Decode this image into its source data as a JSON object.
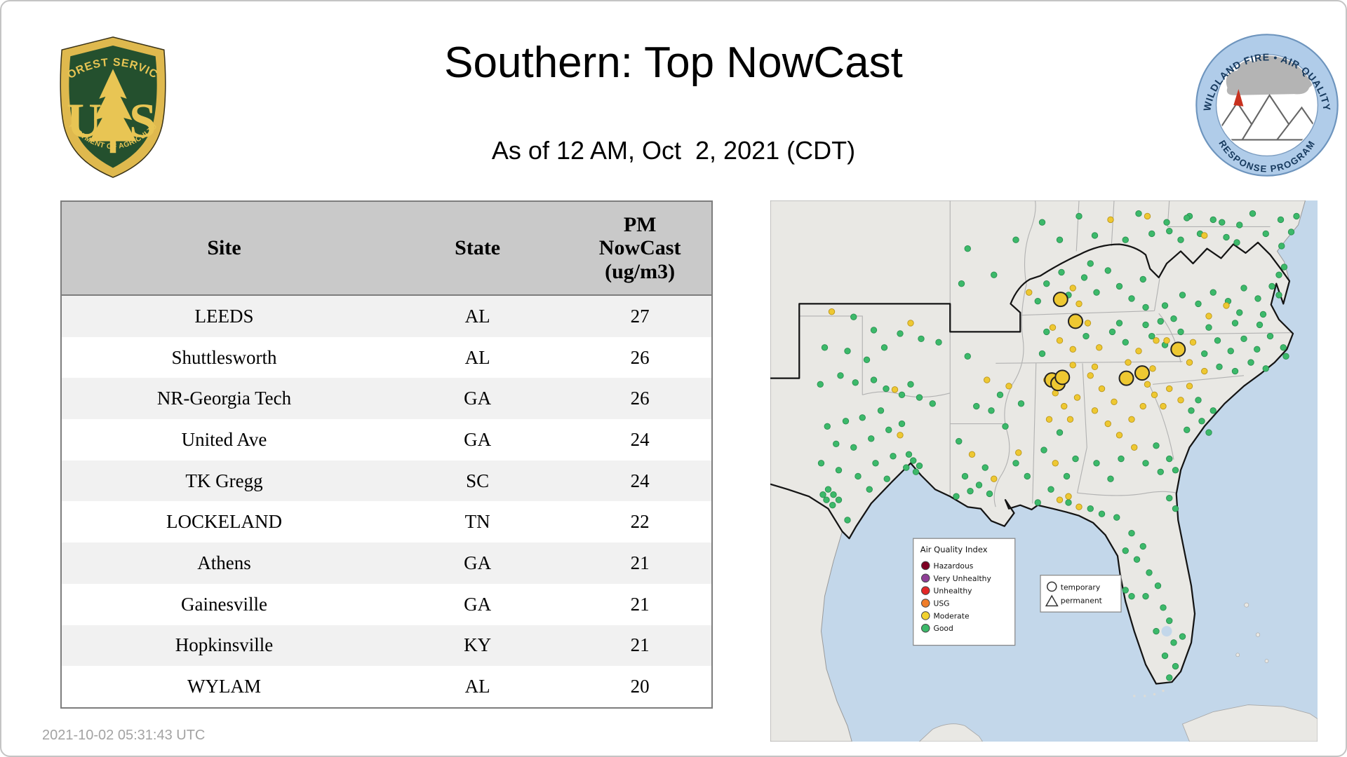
{
  "page": {
    "title": "Southern: Top NowCast",
    "subtitle": "As of 12 AM, Oct  2, 2021 (CDT)",
    "timestamp": "2021-10-02 05:31:43 UTC"
  },
  "logos": {
    "forest_service": {
      "arc_top": "FOREST SERVICE",
      "us_left": "U",
      "us_right": "S",
      "arc_bottom": "DEPARTMENT OF AGRICULTURE"
    },
    "wfaqrp": {
      "arc_top": "WILDLAND FIRE  •  AIR QUALITY",
      "arc_bottom": "RESPONSE PROGRAM"
    }
  },
  "table": {
    "columns": [
      "Site",
      "State",
      "PM\nNowCast\n(ug/m3)"
    ],
    "rows": [
      [
        "LEEDS",
        "AL",
        "27"
      ],
      [
        "Shuttlesworth",
        "AL",
        "26"
      ],
      [
        "NR-Georgia Tech",
        "GA",
        "26"
      ],
      [
        "United Ave",
        "GA",
        "24"
      ],
      [
        "TK Gregg",
        "SC",
        "24"
      ],
      [
        "LOCKELAND",
        "TN",
        "22"
      ],
      [
        "Athens",
        "GA",
        "21"
      ],
      [
        "Gainesville",
        "GA",
        "21"
      ],
      [
        "Hopkinsville",
        "KY",
        "21"
      ],
      [
        "WYLAM",
        "AL",
        "20"
      ]
    ]
  },
  "chart_data": {
    "type": "table",
    "title": "Southern: Top NowCast",
    "as_of": "As of 12 AM, Oct  2, 2021 (CDT)",
    "columns": [
      "Site",
      "State",
      "PM NowCast (ug/m3)"
    ],
    "rows": [
      [
        "LEEDS",
        "AL",
        27
      ],
      [
        "Shuttlesworth",
        "AL",
        26
      ],
      [
        "NR-Georgia Tech",
        "GA",
        26
      ],
      [
        "United Ave",
        "GA",
        24
      ],
      [
        "TK Gregg",
        "SC",
        24
      ],
      [
        "LOCKELAND",
        "TN",
        22
      ],
      [
        "Athens",
        "GA",
        21
      ],
      [
        "Gainesville",
        "GA",
        21
      ],
      [
        "Hopkinsville",
        "KY",
        21
      ],
      [
        "WYLAM",
        "AL",
        20
      ]
    ]
  },
  "map": {
    "colors": {
      "water": "#c3d7ea",
      "land": "#e9e8e4",
      "good": "#3cb96a",
      "good_stroke": "#2a8f50",
      "moderate": "#eec832",
      "moderate_stroke": "#b8941a",
      "temp_stroke": "#222222"
    },
    "legend_aqi": {
      "title": "Air Quality Index",
      "items": [
        {
          "label": "Hazardous",
          "color": "#7e0023"
        },
        {
          "label": "Very Unhealthy",
          "color": "#8f3f97"
        },
        {
          "label": "Unhealthy",
          "color": "#e32726"
        },
        {
          "label": "USG",
          "color": "#f07d29"
        },
        {
          "label": "Moderate",
          "color": "#f2d22e"
        },
        {
          "label": "Good",
          "color": "#3cb96a"
        }
      ]
    },
    "legend_type": {
      "items": [
        {
          "label": "temporary",
          "shape": "circle"
        },
        {
          "label": "permanent",
          "shape": "triangle"
        }
      ]
    },
    "points": [
      [
        95,
        133,
        "g"
      ],
      [
        62,
        168,
        "g"
      ],
      [
        88,
        172,
        "g"
      ],
      [
        110,
        182,
        "g"
      ],
      [
        80,
        200,
        "g"
      ],
      [
        57,
        210,
        "g"
      ],
      [
        97,
        208,
        "g"
      ],
      [
        118,
        205,
        "g"
      ],
      [
        132,
        215,
        "g"
      ],
      [
        150,
        222,
        "g"
      ],
      [
        160,
        210,
        "g"
      ],
      [
        170,
        225,
        "g"
      ],
      [
        185,
        232,
        "g"
      ],
      [
        126,
        240,
        "g"
      ],
      [
        105,
        248,
        "g"
      ],
      [
        86,
        252,
        "g"
      ],
      [
        65,
        258,
        "g"
      ],
      [
        75,
        278,
        "g"
      ],
      [
        95,
        282,
        "g"
      ],
      [
        115,
        272,
        "g"
      ],
      [
        135,
        262,
        "g"
      ],
      [
        150,
        255,
        "g"
      ],
      [
        58,
        300,
        "g"
      ],
      [
        78,
        308,
        "g"
      ],
      [
        100,
        315,
        "g"
      ],
      [
        120,
        300,
        "g"
      ],
      [
        140,
        292,
        "g"
      ],
      [
        155,
        305,
        "g"
      ],
      [
        133,
        318,
        "g"
      ],
      [
        113,
        330,
        "g"
      ],
      [
        66,
        330,
        "g"
      ],
      [
        72,
        336,
        "g"
      ],
      [
        64,
        342,
        "g"
      ],
      [
        71,
        348,
        "g"
      ],
      [
        78,
        342,
        "g"
      ],
      [
        60,
        336,
        "g"
      ],
      [
        88,
        365,
        "g"
      ],
      [
        163,
        297,
        "g"
      ],
      [
        170,
        303,
        "g"
      ],
      [
        166,
        310,
        "g"
      ],
      [
        158,
        290,
        "g"
      ],
      [
        118,
        148,
        "g"
      ],
      [
        148,
        152,
        "g"
      ],
      [
        172,
        158,
        "g"
      ],
      [
        192,
        162,
        "g"
      ],
      [
        130,
        168,
        "g"
      ],
      [
        225,
        178,
        "g"
      ],
      [
        262,
        222,
        "g"
      ],
      [
        235,
        235,
        "g"
      ],
      [
        252,
        240,
        "g"
      ],
      [
        215,
        275,
        "g"
      ],
      [
        245,
        305,
        "g"
      ],
      [
        222,
        315,
        "g"
      ],
      [
        238,
        325,
        "g"
      ],
      [
        250,
        335,
        "g"
      ],
      [
        212,
        338,
        "g"
      ],
      [
        228,
        332,
        "g"
      ],
      [
        225,
        55,
        "g"
      ],
      [
        255,
        85,
        "g"
      ],
      [
        280,
        45,
        "g"
      ],
      [
        218,
        95,
        "g"
      ],
      [
        310,
        25,
        "g"
      ],
      [
        330,
        45,
        "g"
      ],
      [
        352,
        18,
        "g"
      ],
      [
        370,
        40,
        "g"
      ],
      [
        405,
        45,
        "g"
      ],
      [
        420,
        15,
        "g"
      ],
      [
        435,
        38,
        "g"
      ],
      [
        452,
        25,
        "g"
      ],
      [
        468,
        45,
        "g"
      ],
      [
        478,
        18,
        "g"
      ],
      [
        490,
        38,
        "g"
      ],
      [
        505,
        22,
        "g"
      ],
      [
        520,
        42,
        "g"
      ],
      [
        535,
        28,
        "g"
      ],
      [
        550,
        15,
        "g"
      ],
      [
        565,
        38,
        "g"
      ],
      [
        582,
        22,
        "g"
      ],
      [
        315,
        95,
        "g"
      ],
      [
        332,
        82,
        "g"
      ],
      [
        358,
        88,
        "g"
      ],
      [
        372,
        105,
        "g"
      ],
      [
        385,
        80,
        "g"
      ],
      [
        398,
        98,
        "g"
      ],
      [
        412,
        112,
        "g"
      ],
      [
        425,
        90,
        "g"
      ],
      [
        305,
        115,
        "g"
      ],
      [
        428,
        122,
        "g"
      ],
      [
        340,
        108,
        "g"
      ],
      [
        365,
        72,
        "g"
      ],
      [
        315,
        150,
        "g"
      ],
      [
        360,
        155,
        "g"
      ],
      [
        390,
        150,
        "g"
      ],
      [
        405,
        162,
        "g"
      ],
      [
        435,
        155,
        "g"
      ],
      [
        450,
        165,
        "g"
      ],
      [
        310,
        175,
        "g"
      ],
      [
        398,
        140,
        "g"
      ],
      [
        428,
        142,
        "g"
      ],
      [
        445,
        138,
        "g"
      ],
      [
        286,
        232,
        "g"
      ],
      [
        268,
        258,
        "g"
      ],
      [
        293,
        315,
        "g"
      ],
      [
        280,
        300,
        "g"
      ],
      [
        330,
        265,
        "g"
      ],
      [
        312,
        285,
        "g"
      ],
      [
        338,
        315,
        "g"
      ],
      [
        348,
        295,
        "g"
      ],
      [
        320,
        330,
        "g"
      ],
      [
        305,
        345,
        "g"
      ],
      [
        400,
        295,
        "g"
      ],
      [
        428,
        300,
        "g"
      ],
      [
        440,
        280,
        "g"
      ],
      [
        372,
        300,
        "g"
      ],
      [
        388,
        318,
        "g"
      ],
      [
        455,
        295,
        "g"
      ],
      [
        445,
        310,
        "g"
      ],
      [
        462,
        308,
        "g"
      ],
      [
        480,
        240,
        "g"
      ],
      [
        492,
        252,
        "g"
      ],
      [
        475,
        262,
        "g"
      ],
      [
        500,
        265,
        "g"
      ],
      [
        505,
        240,
        "g"
      ],
      [
        488,
        228,
        "g"
      ],
      [
        468,
        150,
        "g"
      ],
      [
        495,
        175,
        "g"
      ],
      [
        510,
        160,
        "g"
      ],
      [
        525,
        172,
        "g"
      ],
      [
        540,
        158,
        "g"
      ],
      [
        555,
        170,
        "g"
      ],
      [
        570,
        155,
        "g"
      ],
      [
        500,
        145,
        "g"
      ],
      [
        530,
        140,
        "g"
      ],
      [
        558,
        142,
        "g"
      ],
      [
        512,
        190,
        "g"
      ],
      [
        530,
        195,
        "g"
      ],
      [
        548,
        185,
        "g"
      ],
      [
        565,
        192,
        "g"
      ],
      [
        585,
        168,
        "g"
      ],
      [
        588,
        178,
        "g"
      ],
      [
        450,
        120,
        "g"
      ],
      [
        470,
        108,
        "g"
      ],
      [
        488,
        118,
        "g"
      ],
      [
        505,
        105,
        "g"
      ],
      [
        522,
        115,
        "g"
      ],
      [
        540,
        100,
        "g"
      ],
      [
        556,
        112,
        "g"
      ],
      [
        572,
        98,
        "g"
      ],
      [
        580,
        108,
        "g"
      ],
      [
        460,
        135,
        "g"
      ],
      [
        535,
        128,
        "g"
      ],
      [
        562,
        130,
        "g"
      ],
      [
        580,
        85,
        "g"
      ],
      [
        600,
        18,
        "g"
      ],
      [
        594,
        36,
        "g"
      ],
      [
        583,
        52,
        "g"
      ],
      [
        586,
        76,
        "g"
      ],
      [
        455,
        35,
        "g"
      ],
      [
        475,
        20,
        "g"
      ],
      [
        515,
        25,
        "g"
      ],
      [
        532,
        48,
        "g"
      ],
      [
        340,
        345,
        "g"
      ],
      [
        365,
        352,
        "g"
      ],
      [
        378,
        358,
        "g"
      ],
      [
        395,
        362,
        "g"
      ],
      [
        412,
        380,
        "g"
      ],
      [
        425,
        395,
        "g"
      ],
      [
        418,
        410,
        "g"
      ],
      [
        432,
        425,
        "g"
      ],
      [
        442,
        440,
        "g"
      ],
      [
        405,
        445,
        "g"
      ],
      [
        412,
        452,
        "g"
      ],
      [
        448,
        465,
        "g"
      ],
      [
        455,
        480,
        "g"
      ],
      [
        440,
        492,
        "g"
      ],
      [
        460,
        505,
        "g"
      ],
      [
        450,
        520,
        "g"
      ],
      [
        462,
        532,
        "g"
      ],
      [
        455,
        545,
        "g"
      ],
      [
        405,
        400,
        "g"
      ],
      [
        455,
        340,
        "g"
      ],
      [
        462,
        352,
        "g"
      ],
      [
        470,
        498,
        "g"
      ],
      [
        428,
        452,
        "g"
      ],
      [
        70,
        127,
        "y"
      ],
      [
        142,
        216,
        "y"
      ],
      [
        148,
        268,
        "y"
      ],
      [
        160,
        140,
        "y"
      ],
      [
        247,
        205,
        "y"
      ],
      [
        230,
        290,
        "y"
      ],
      [
        255,
        318,
        "y"
      ],
      [
        295,
        105,
        "y"
      ],
      [
        388,
        22,
        "y"
      ],
      [
        430,
        18,
        "y"
      ],
      [
        345,
        100,
        "y"
      ],
      [
        352,
        118,
        "y"
      ],
      [
        330,
        160,
        "y"
      ],
      [
        345,
        170,
        "y"
      ],
      [
        375,
        168,
        "y"
      ],
      [
        420,
        172,
        "y"
      ],
      [
        362,
        140,
        "y"
      ],
      [
        440,
        160,
        "y"
      ],
      [
        322,
        145,
        "y"
      ],
      [
        272,
        212,
        "y"
      ],
      [
        283,
        288,
        "y"
      ],
      [
        315,
        205,
        "y"
      ],
      [
        325,
        220,
        "y"
      ],
      [
        335,
        235,
        "y"
      ],
      [
        318,
        250,
        "y"
      ],
      [
        342,
        250,
        "y"
      ],
      [
        350,
        225,
        "y"
      ],
      [
        325,
        300,
        "y"
      ],
      [
        340,
        338,
        "y"
      ],
      [
        345,
        188,
        "y"
      ],
      [
        365,
        200,
        "y"
      ],
      [
        378,
        215,
        "y"
      ],
      [
        392,
        230,
        "y"
      ],
      [
        370,
        240,
        "y"
      ],
      [
        385,
        255,
        "y"
      ],
      [
        398,
        268,
        "y"
      ],
      [
        412,
        250,
        "y"
      ],
      [
        425,
        235,
        "y"
      ],
      [
        438,
        222,
        "y"
      ],
      [
        415,
        282,
        "y"
      ],
      [
        370,
        190,
        "y"
      ],
      [
        430,
        210,
        "y"
      ],
      [
        436,
        192,
        "y"
      ],
      [
        408,
        185,
        "y"
      ],
      [
        455,
        215,
        "y"
      ],
      [
        468,
        228,
        "y"
      ],
      [
        448,
        235,
        "y"
      ],
      [
        478,
        212,
        "y"
      ],
      [
        452,
        160,
        "y"
      ],
      [
        482,
        162,
        "y"
      ],
      [
        478,
        185,
        "y"
      ],
      [
        495,
        195,
        "y"
      ],
      [
        520,
        120,
        "y"
      ],
      [
        500,
        132,
        "y"
      ],
      [
        352,
        350,
        "y"
      ],
      [
        330,
        342,
        "y"
      ],
      [
        495,
        40,
        "y"
      ],
      [
        331,
        113,
        "T"
      ],
      [
        348,
        138,
        "T"
      ],
      [
        321,
        205,
        "T"
      ],
      [
        328,
        209,
        "T"
      ],
      [
        333,
        202,
        "T"
      ],
      [
        406,
        203,
        "T"
      ],
      [
        424,
        197,
        "T"
      ],
      [
        465,
        170,
        "T"
      ]
    ]
  }
}
